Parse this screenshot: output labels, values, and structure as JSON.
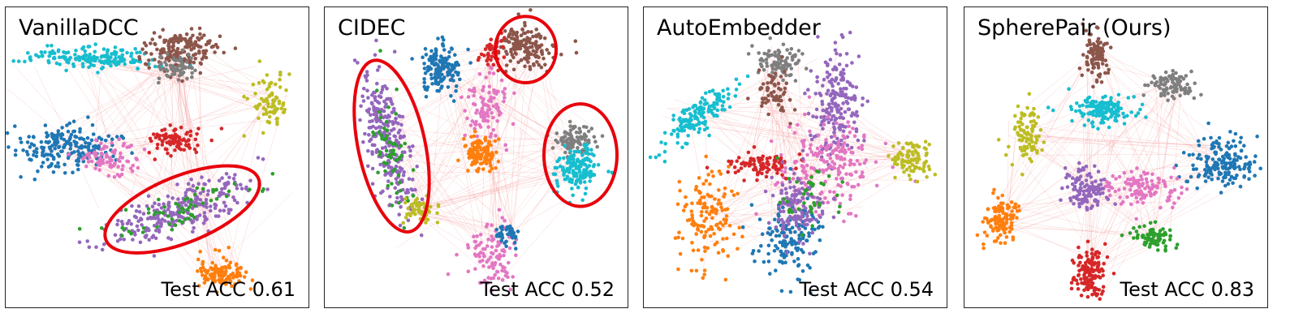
{
  "chart_data": [
    {
      "type": "scatter",
      "title": "VanillaDCC",
      "metric": "Test ACC 0.61",
      "clusters": [
        {
          "color": "#17becf",
          "cx": 0.28,
          "cy": 0.17,
          "rx": 0.22,
          "ry": 0.035,
          "n": 170
        },
        {
          "color": "#8c564b",
          "cx": 0.58,
          "cy": 0.14,
          "rx": 0.12,
          "ry": 0.06,
          "n": 170
        },
        {
          "color": "#7f7f7f",
          "cx": 0.56,
          "cy": 0.19,
          "rx": 0.06,
          "ry": 0.05,
          "n": 60
        },
        {
          "color": "#bcbd22",
          "cx": 0.87,
          "cy": 0.31,
          "rx": 0.05,
          "ry": 0.08,
          "n": 80
        },
        {
          "color": "#d62728",
          "cx": 0.56,
          "cy": 0.44,
          "rx": 0.08,
          "ry": 0.04,
          "n": 90
        },
        {
          "color": "#1f77b4",
          "cx": 0.2,
          "cy": 0.47,
          "rx": 0.16,
          "ry": 0.07,
          "n": 200
        },
        {
          "color": "#e377c2",
          "cx": 0.34,
          "cy": 0.5,
          "rx": 0.1,
          "ry": 0.05,
          "n": 80
        },
        {
          "color": "#9467bd",
          "cx": 0.58,
          "cy": 0.67,
          "rx": 0.24,
          "ry": 0.06,
          "angle": -22,
          "n": 260
        },
        {
          "color": "#2ca02c",
          "cx": 0.6,
          "cy": 0.66,
          "rx": 0.22,
          "ry": 0.05,
          "angle": -22,
          "n": 60
        },
        {
          "color": "#ff7f0e",
          "cx": 0.71,
          "cy": 0.88,
          "rx": 0.07,
          "ry": 0.05,
          "n": 120
        }
      ],
      "highlights": [
        {
          "cx": 0.58,
          "cy": 0.67,
          "rx": 0.27,
          "ry": 0.11,
          "angle": -22
        }
      ]
    },
    {
      "type": "scatter",
      "title": "CIDEC",
      "metric": "Test ACC 0.52",
      "clusters": [
        {
          "color": "#1f77b4",
          "cx": 0.38,
          "cy": 0.2,
          "rx": 0.06,
          "ry": 0.08,
          "n": 150
        },
        {
          "color": "#8c564b",
          "cx": 0.66,
          "cy": 0.13,
          "rx": 0.08,
          "ry": 0.06,
          "n": 150
        },
        {
          "color": "#d62728",
          "cx": 0.55,
          "cy": 0.15,
          "rx": 0.04,
          "ry": 0.04,
          "n": 40
        },
        {
          "color": "#9467bd",
          "cx": 0.21,
          "cy": 0.45,
          "rx": 0.06,
          "ry": 0.22,
          "angle": -12,
          "n": 260
        },
        {
          "color": "#2ca02c",
          "cx": 0.22,
          "cy": 0.47,
          "rx": 0.05,
          "ry": 0.2,
          "angle": -12,
          "n": 60
        },
        {
          "color": "#bcbd22",
          "cx": 0.31,
          "cy": 0.67,
          "rx": 0.05,
          "ry": 0.04,
          "n": 60
        },
        {
          "color": "#e377c2",
          "cx": 0.53,
          "cy": 0.33,
          "rx": 0.06,
          "ry": 0.1,
          "n": 100
        },
        {
          "color": "#ff7f0e",
          "cx": 0.51,
          "cy": 0.48,
          "rx": 0.05,
          "ry": 0.06,
          "n": 120
        },
        {
          "color": "#7f7f7f",
          "cx": 0.82,
          "cy": 0.44,
          "rx": 0.06,
          "ry": 0.05,
          "n": 90
        },
        {
          "color": "#17becf",
          "cx": 0.83,
          "cy": 0.54,
          "rx": 0.07,
          "ry": 0.07,
          "n": 160
        },
        {
          "color": "#e377c2",
          "cx": 0.55,
          "cy": 0.82,
          "rx": 0.08,
          "ry": 0.1,
          "n": 100
        },
        {
          "color": "#1f77b4",
          "cx": 0.6,
          "cy": 0.75,
          "rx": 0.04,
          "ry": 0.04,
          "n": 40
        }
      ],
      "highlights": [
        {
          "cx": 0.66,
          "cy": 0.14,
          "rx": 0.1,
          "ry": 0.11,
          "angle": 0
        },
        {
          "cx": 0.22,
          "cy": 0.46,
          "rx": 0.11,
          "ry": 0.29,
          "angle": -12
        },
        {
          "cx": 0.84,
          "cy": 0.49,
          "rx": 0.12,
          "ry": 0.17,
          "angle": 0
        }
      ]
    },
    {
      "type": "scatter",
      "title": "AutoEmbedder",
      "metric": "Test ACC 0.54",
      "clusters": [
        {
          "color": "#17becf",
          "cx": 0.18,
          "cy": 0.36,
          "rx": 0.13,
          "ry": 0.04,
          "angle": -40,
          "n": 150
        },
        {
          "color": "#7f7f7f",
          "cx": 0.44,
          "cy": 0.18,
          "rx": 0.07,
          "ry": 0.05,
          "n": 90
        },
        {
          "color": "#8c564b",
          "cx": 0.42,
          "cy": 0.28,
          "rx": 0.05,
          "ry": 0.07,
          "n": 60
        },
        {
          "color": "#9467bd",
          "cx": 0.63,
          "cy": 0.32,
          "rx": 0.07,
          "ry": 0.16,
          "n": 200
        },
        {
          "color": "#e377c2",
          "cx": 0.6,
          "cy": 0.52,
          "rx": 0.16,
          "ry": 0.14,
          "n": 200
        },
        {
          "color": "#bcbd22",
          "cx": 0.88,
          "cy": 0.5,
          "rx": 0.06,
          "ry": 0.06,
          "n": 90
        },
        {
          "color": "#ff7f0e",
          "cx": 0.21,
          "cy": 0.7,
          "rx": 0.08,
          "ry": 0.15,
          "n": 140
        },
        {
          "color": "#d62728",
          "cx": 0.38,
          "cy": 0.52,
          "rx": 0.1,
          "ry": 0.04,
          "n": 90
        },
        {
          "color": "#1f77b4",
          "cx": 0.48,
          "cy": 0.76,
          "rx": 0.1,
          "ry": 0.12,
          "n": 150
        },
        {
          "color": "#9467bd",
          "cx": 0.5,
          "cy": 0.66,
          "rx": 0.08,
          "ry": 0.1,
          "n": 120
        },
        {
          "color": "#2ca02c",
          "cx": 0.55,
          "cy": 0.63,
          "rx": 0.1,
          "ry": 0.1,
          "n": 40
        }
      ],
      "highlights": []
    },
    {
      "type": "scatter",
      "title": "SpherePair (Ours)",
      "metric": "Test ACC 0.83",
      "clusters": [
        {
          "color": "#8c564b",
          "cx": 0.43,
          "cy": 0.16,
          "rx": 0.04,
          "ry": 0.08,
          "n": 100
        },
        {
          "color": "#7f7f7f",
          "cx": 0.68,
          "cy": 0.26,
          "rx": 0.07,
          "ry": 0.04,
          "n": 90
        },
        {
          "color": "#17becf",
          "cx": 0.45,
          "cy": 0.34,
          "rx": 0.1,
          "ry": 0.04,
          "n": 150
        },
        {
          "color": "#bcbd22",
          "cx": 0.2,
          "cy": 0.42,
          "rx": 0.05,
          "ry": 0.09,
          "n": 90
        },
        {
          "color": "#1f77b4",
          "cx": 0.85,
          "cy": 0.52,
          "rx": 0.1,
          "ry": 0.08,
          "n": 170
        },
        {
          "color": "#9467bd",
          "cx": 0.4,
          "cy": 0.6,
          "rx": 0.07,
          "ry": 0.07,
          "n": 120
        },
        {
          "color": "#e377c2",
          "cx": 0.58,
          "cy": 0.6,
          "rx": 0.12,
          "ry": 0.05,
          "n": 120
        },
        {
          "color": "#ff7f0e",
          "cx": 0.12,
          "cy": 0.7,
          "rx": 0.05,
          "ry": 0.07,
          "n": 120
        },
        {
          "color": "#2ca02c",
          "cx": 0.62,
          "cy": 0.76,
          "rx": 0.06,
          "ry": 0.04,
          "n": 80
        },
        {
          "color": "#d62728",
          "cx": 0.41,
          "cy": 0.88,
          "rx": 0.05,
          "ry": 0.08,
          "n": 130
        }
      ],
      "highlights": []
    }
  ]
}
